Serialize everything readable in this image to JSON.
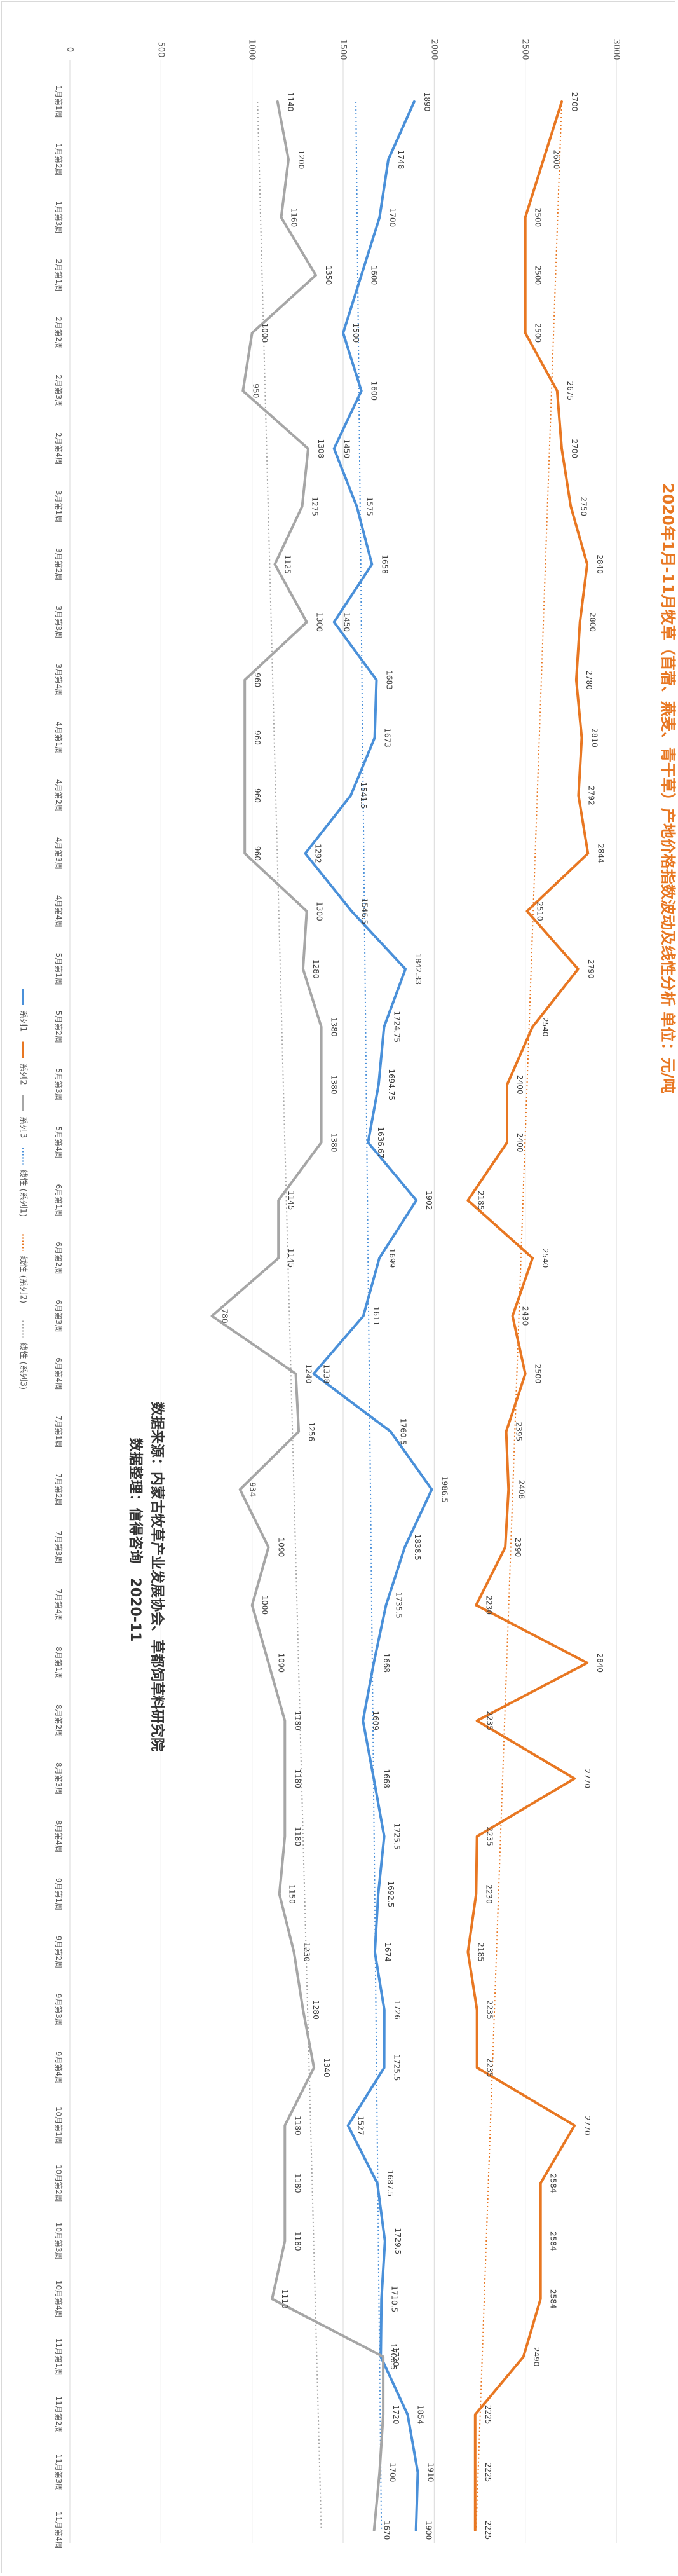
{
  "chart_data": {
    "type": "line",
    "title": "2020年1月-11月牧草（苜蓿、燕麦、青干草）产地价格指数波动及线性分析 单位：元/吨",
    "source_lines": [
      "数据来源：内蒙古牧草产业发展协会、草都饲草料研究院",
      "数据整理：信得咨询　2020-11"
    ],
    "value_axis": {
      "min": 0,
      "max": 3000,
      "step": 500,
      "ticks": [
        "0",
        "500",
        "1000",
        "1500",
        "2000",
        "2500",
        "3000"
      ]
    },
    "categories": [
      "1月第1周",
      "1月第2周",
      "1月第3周",
      "2月第1周",
      "2月第2周",
      "2月第3周",
      "2月第4周",
      "3月第1周",
      "3月第2周",
      "3月第3周",
      "3月第4周",
      "4月第1周",
      "4月第2周",
      "4月第3周",
      "4月第4周",
      "5月第1周",
      "5月第2周",
      "5月第3周",
      "5月第4周",
      "6月第1周",
      "6月第2周",
      "6月第3周",
      "6月第4周",
      "7月第1周",
      "7月第2周",
      "7月第3周",
      "7月第4周",
      "8月第1周",
      "8月第2周",
      "8月第3周",
      "8月第4周",
      "9月第1周",
      "9月第2周",
      "9月第3周",
      "9月第4周",
      "10月第1周",
      "10月第2周",
      "10月第3周",
      "10月第4周",
      "11月第1周",
      "11月第2周",
      "11月第3周",
      "11月第4周"
    ],
    "series": [
      {
        "name": "系列1",
        "color": "#4a90d9",
        "values": [
          1890,
          1748,
          1700,
          1600,
          1500,
          1600,
          1450,
          1575,
          1658,
          1450,
          1683,
          1673,
          1541.5,
          1292,
          1546.5,
          1842.33,
          1724.75,
          1694.75,
          1636.67,
          1902,
          1699,
          1611,
          1338,
          1760.5,
          1986.5,
          1838.5,
          1735.5,
          1668,
          1609,
          1668,
          1725.5,
          1692.5,
          1674,
          1726,
          1725.5,
          1527,
          1687.5,
          1729.5,
          1710.5,
          1706.5,
          1854,
          1910,
          1900
        ],
        "labels": [
          "1890",
          "1748",
          "1700",
          "1600",
          "1500",
          "1600",
          "1450",
          "1575",
          "1658",
          "1450",
          "1683",
          "1673",
          "1541.5",
          "1292",
          "1546.5",
          "1842.33",
          "1724.75",
          "1694.75",
          "1636.67",
          "1902",
          "1699",
          "1611",
          "1338",
          "1760.5",
          "1986.5",
          "1838.5",
          "1735.5",
          "1668",
          "1609",
          "1668",
          "1725.5",
          "1692.5",
          "1674",
          "1726",
          "1725.5",
          "1527",
          "1687.5",
          "1729.5",
          "1710.5",
          "1706.5",
          "1854",
          "1910",
          "1900"
        ]
      },
      {
        "name": "系列2",
        "color": "#e87722",
        "values": [
          2700,
          2600,
          2500,
          2500,
          2500,
          2675,
          2700,
          2750,
          2840,
          2800,
          2780,
          2810,
          2792,
          2844,
          2510,
          2790,
          2540,
          2400,
          2400,
          2185,
          2540,
          2430,
          2500,
          2395,
          2408,
          2390,
          2230,
          2840,
          2235,
          2770,
          2235,
          2230,
          2185,
          2235,
          2235,
          2770,
          2584,
          2584,
          2584,
          2490,
          2225,
          2225,
          2225
        ],
        "labels": [
          "2700",
          "2600",
          "2500",
          "2500",
          "2500",
          "2675",
          "2700",
          "2750",
          "2840",
          "2800",
          "2780",
          "2810",
          "2792",
          "2844",
          "2510",
          "2790",
          "2540",
          "2400",
          "2400",
          "2185",
          "2540",
          "2430",
          "2500",
          "2395",
          "2408",
          "2390",
          "2230",
          "2840",
          "2235",
          "2770",
          "2235",
          "2230",
          "2185",
          "2235",
          "2235",
          "2770",
          "2584",
          "2584",
          "2584",
          "2490",
          "2225",
          "2225",
          "2225"
        ]
      },
      {
        "name": "系列3",
        "color": "#a6a6a6",
        "values": [
          1140,
          1200,
          1160,
          1350,
          1000,
          950,
          1308,
          1275,
          1125,
          1300,
          960,
          960,
          960,
          960,
          1300,
          1280,
          1380,
          1380,
          1380,
          1145,
          1145,
          780,
          1240,
          1256,
          934,
          1090,
          1000,
          1090,
          1180,
          1180,
          1180,
          1150,
          1230,
          1280,
          1340,
          1180,
          1180,
          1180,
          1110,
          1720,
          1720,
          1700,
          1670
        ],
        "labels": [
          "1140",
          "1200",
          "1160",
          "1350",
          "1000",
          "950",
          "1308",
          "1275",
          "1125",
          "1300",
          "960",
          "960",
          "960",
          "960",
          "1300",
          "1280",
          "1380",
          "1380",
          "1380",
          "1145",
          "1145",
          "780",
          "1240",
          "1256",
          "934",
          "1090",
          "1000",
          "1090",
          "1180",
          "1180",
          "1180",
          "1150",
          "1230",
          "1280",
          "1340",
          "1180",
          "1180",
          "1180",
          "1110",
          "1720",
          "1720",
          "1700",
          "1670"
        ]
      }
    ],
    "trendlines": [
      {
        "name": "线性 (系列1)",
        "color": "#4a90d9",
        "start": 1570,
        "end": 1710
      },
      {
        "name": "线性 (系列2)",
        "color": "#e87722",
        "start": 2700,
        "end": 2230
      },
      {
        "name": "线性 (系列3)",
        "color": "#a6a6a6",
        "start": 1030,
        "end": 1380
      }
    ],
    "legend_position": "bottom",
    "grid": true
  }
}
